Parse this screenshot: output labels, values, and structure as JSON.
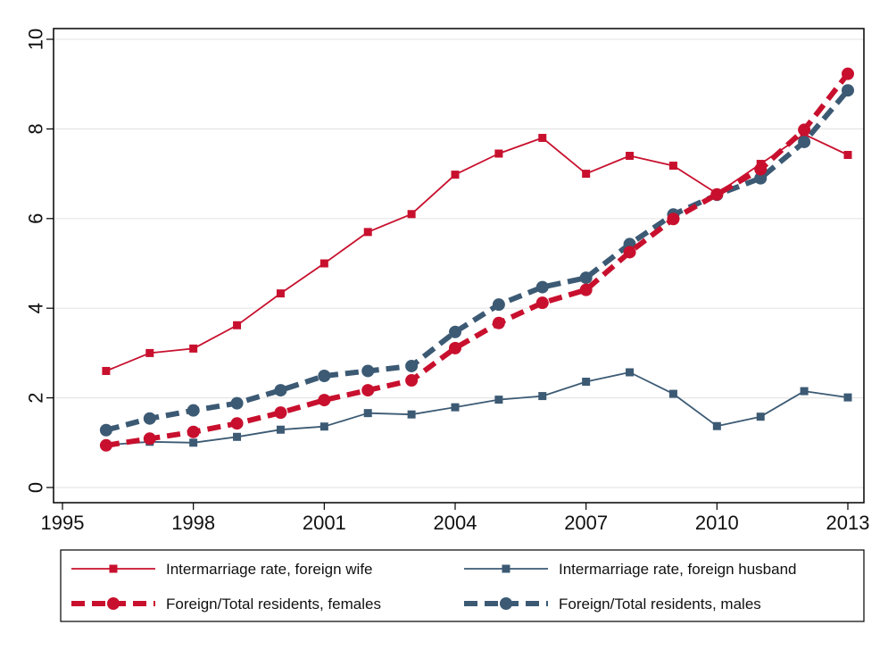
{
  "chart_data": {
    "type": "line",
    "x": [
      1996,
      1997,
      1998,
      1999,
      2000,
      2001,
      2002,
      2003,
      2004,
      2005,
      2006,
      2007,
      2008,
      2009,
      2010,
      2011,
      2012,
      2013
    ],
    "xlim": [
      1995,
      2013
    ],
    "ylim": [
      0,
      10
    ],
    "xticks": [
      1995,
      1998,
      2001,
      2004,
      2007,
      2010,
      2013
    ],
    "yticks": [
      0,
      2,
      4,
      6,
      8,
      10
    ],
    "grid": true,
    "legend_position": "bottom",
    "series": [
      {
        "name": "Intermarriage rate, foreign wife",
        "color": "#c8102e",
        "style": "solid",
        "marker": "square",
        "values": [
          2.6,
          3.0,
          3.1,
          3.62,
          4.33,
          5.0,
          5.7,
          6.1,
          6.98,
          7.45,
          7.8,
          7.0,
          7.4,
          7.18,
          6.56,
          7.22,
          7.88,
          7.42
        ]
      },
      {
        "name": "Intermarriage rate, foreign husband",
        "color": "#3c5a74",
        "style": "solid",
        "marker": "square",
        "values": [
          0.95,
          1.02,
          1.0,
          1.13,
          1.29,
          1.36,
          1.66,
          1.63,
          1.79,
          1.96,
          2.04,
          2.36,
          2.57,
          2.09,
          1.37,
          1.58,
          2.15,
          2.01
        ]
      },
      {
        "name": "Foreign/Total residents, females",
        "color": "#c8102e",
        "style": "dashed",
        "marker": "circle",
        "values": [
          0.94,
          1.09,
          1.24,
          1.43,
          1.67,
          1.95,
          2.17,
          2.39,
          3.11,
          3.67,
          4.12,
          4.41,
          5.25,
          5.99,
          6.54,
          7.1,
          7.98,
          9.23
        ]
      },
      {
        "name": "Foreign/Total residents, males",
        "color": "#3c5a74",
        "style": "dashed",
        "marker": "circle",
        "values": [
          1.28,
          1.54,
          1.72,
          1.88,
          2.17,
          2.49,
          2.6,
          2.71,
          3.47,
          4.08,
          4.47,
          4.68,
          5.43,
          6.09,
          6.53,
          6.9,
          7.71,
          8.86
        ]
      }
    ]
  }
}
